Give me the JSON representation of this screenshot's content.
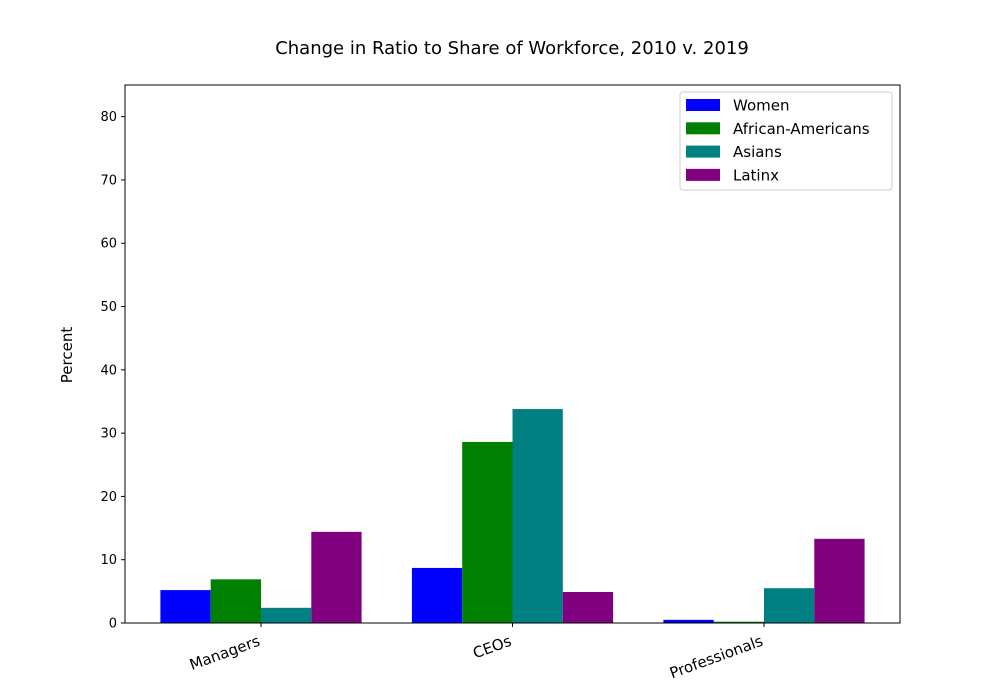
{
  "chart_data": {
    "type": "bar",
    "title": "Change in Ratio to Share of Workforce, 2010 v. 2019",
    "xlabel": "",
    "ylabel": "Percent",
    "categories": [
      "Managers",
      "CEOs",
      "Professionals"
    ],
    "series": [
      {
        "name": "Women",
        "color": "#0000ff",
        "values": [
          5.2,
          8.7,
          0.5
        ]
      },
      {
        "name": "African-Americans",
        "color": "#008000",
        "values": [
          6.9,
          28.6,
          0.2
        ]
      },
      {
        "name": "Asians",
        "color": "#008080",
        "values": [
          2.4,
          33.8,
          5.5
        ]
      },
      {
        "name": "Latinx",
        "color": "#800080",
        "values": [
          14.4,
          4.9,
          13.3
        ]
      }
    ],
    "ylim": [
      0,
      85
    ],
    "yticks": [
      0,
      10,
      20,
      30,
      40,
      50,
      60,
      70,
      80
    ],
    "grid": false,
    "legend_position": "top-right",
    "xtick_rotation": "slanted"
  }
}
